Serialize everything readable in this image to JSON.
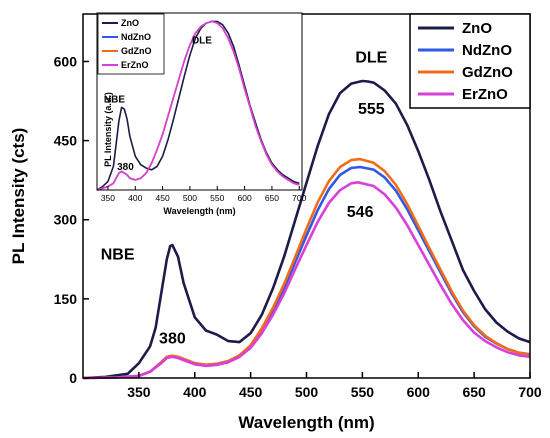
{
  "chart_data": [
    {
      "type": "line",
      "xlabel": "Wavelength (nm)",
      "ylabel": "PL Intensity (cts)",
      "xlim": [
        300,
        700
      ],
      "ylim": [
        0,
        690
      ],
      "xticks": [
        350,
        400,
        450,
        500,
        550,
        600,
        650,
        700
      ],
      "yticks": [
        0,
        150,
        300,
        450,
        600
      ],
      "legend_position": "top-right",
      "grid": false,
      "annotations": [
        {
          "text": "NBE",
          "x": 331,
          "y": 225
        },
        {
          "text": "380",
          "x": 380,
          "y": 65
        },
        {
          "text": "DLE",
          "x": 558,
          "y": 598
        },
        {
          "text": "555",
          "x": 558,
          "y": 500
        },
        {
          "text": "546",
          "x": 548,
          "y": 305
        }
      ],
      "series": [
        {
          "name": "ZnO",
          "color": "#1c1c48",
          "x": [
            300,
            320,
            340,
            350,
            360,
            365,
            370,
            375,
            378,
            380,
            385,
            390,
            400,
            410,
            420,
            430,
            440,
            450,
            460,
            470,
            480,
            490,
            500,
            510,
            520,
            530,
            540,
            550,
            555,
            560,
            570,
            580,
            590,
            600,
            610,
            620,
            630,
            640,
            650,
            660,
            670,
            680,
            690,
            700
          ],
          "y": [
            0,
            2,
            8,
            28,
            60,
            95,
            160,
            225,
            250,
            252,
            230,
            180,
            115,
            90,
            82,
            70,
            68,
            85,
            120,
            170,
            230,
            300,
            370,
            440,
            500,
            540,
            558,
            563,
            562,
            560,
            545,
            520,
            480,
            430,
            375,
            315,
            260,
            205,
            165,
            130,
            105,
            88,
            75,
            68
          ]
        },
        {
          "name": "NdZnO",
          "color": "#2f59e6",
          "x": [
            300,
            330,
            350,
            360,
            370,
            375,
            380,
            385,
            390,
            400,
            410,
            420,
            430,
            440,
            450,
            460,
            470,
            480,
            490,
            500,
            510,
            520,
            530,
            540,
            548,
            560,
            570,
            580,
            590,
            600,
            610,
            620,
            630,
            640,
            650,
            660,
            670,
            680,
            690,
            700
          ],
          "y": [
            0,
            1,
            4,
            12,
            30,
            40,
            42,
            40,
            36,
            28,
            25,
            27,
            32,
            42,
            60,
            90,
            128,
            170,
            220,
            270,
            318,
            358,
            385,
            398,
            400,
            395,
            380,
            355,
            320,
            280,
            240,
            200,
            160,
            125,
            98,
            78,
            65,
            55,
            48,
            45
          ]
        },
        {
          "name": "GdZnO",
          "color": "#f26c17",
          "x": [
            300,
            330,
            350,
            360,
            370,
            375,
            380,
            385,
            390,
            400,
            410,
            420,
            430,
            440,
            450,
            460,
            470,
            480,
            490,
            500,
            510,
            520,
            530,
            540,
            548,
            560,
            570,
            580,
            590,
            600,
            610,
            620,
            630,
            640,
            650,
            660,
            670,
            680,
            690,
            700
          ],
          "y": [
            0,
            1,
            4,
            12,
            30,
            40,
            42,
            40,
            36,
            28,
            25,
            27,
            32,
            43,
            62,
            94,
            133,
            178,
            230,
            283,
            333,
            373,
            400,
            413,
            415,
            408,
            392,
            366,
            330,
            288,
            246,
            205,
            164,
            128,
            100,
            80,
            66,
            55,
            48,
            44
          ]
        },
        {
          "name": "ErZnO",
          "color": "#d93fd9",
          "x": [
            300,
            330,
            350,
            360,
            370,
            375,
            380,
            385,
            390,
            400,
            410,
            420,
            430,
            440,
            450,
            460,
            470,
            480,
            490,
            500,
            510,
            520,
            530,
            540,
            546,
            560,
            570,
            580,
            590,
            600,
            610,
            620,
            630,
            640,
            650,
            660,
            670,
            680,
            690,
            700
          ],
          "y": [
            0,
            1,
            4,
            12,
            28,
            38,
            40,
            38,
            34,
            26,
            23,
            25,
            30,
            40,
            57,
            85,
            120,
            160,
            207,
            252,
            296,
            332,
            356,
            369,
            371,
            364,
            348,
            323,
            290,
            252,
            214,
            176,
            140,
            110,
            86,
            70,
            58,
            49,
            43,
            40
          ]
        }
      ]
    },
    {
      "type": "line",
      "xlabel": "Wavelength (nm)",
      "ylabel": "PL Intensity (a.u.)",
      "xlim": [
        330,
        705
      ],
      "ylim": [
        0,
        1.05
      ],
      "xticks": [
        350,
        400,
        450,
        500,
        550,
        600,
        650,
        700
      ],
      "legend_position": "top-left",
      "annotations": [
        {
          "text": "NBE",
          "x": 362,
          "y": 0.52
        },
        {
          "text": "380",
          "x": 382,
          "y": 0.12
        },
        {
          "text": "DLE",
          "x": 522,
          "y": 0.87
        }
      ],
      "series": [
        {
          "name": "ZnO",
          "color": "#1c1c48",
          "x": [
            330,
            340,
            350,
            360,
            365,
            370,
            375,
            380,
            385,
            390,
            400,
            410,
            420,
            430,
            440,
            450,
            460,
            470,
            480,
            490,
            500,
            510,
            520,
            530,
            540,
            550,
            560,
            570,
            580,
            590,
            600,
            610,
            620,
            630,
            640,
            650,
            660,
            670,
            680,
            690,
            700
          ],
          "y": [
            0,
            0.02,
            0.05,
            0.14,
            0.27,
            0.41,
            0.49,
            0.48,
            0.42,
            0.32,
            0.2,
            0.15,
            0.13,
            0.12,
            0.14,
            0.2,
            0.3,
            0.42,
            0.55,
            0.68,
            0.8,
            0.9,
            0.96,
            0.99,
            1.0,
            1.0,
            0.98,
            0.93,
            0.85,
            0.74,
            0.62,
            0.5,
            0.4,
            0.3,
            0.22,
            0.16,
            0.12,
            0.09,
            0.07,
            0.05,
            0.04
          ]
        },
        {
          "name": "NdZnO",
          "color": "#2f59e6",
          "x": [
            330,
            340,
            350,
            360,
            365,
            370,
            375,
            380,
            385,
            390,
            400,
            410,
            420,
            430,
            440,
            450,
            460,
            470,
            480,
            490,
            500,
            510,
            520,
            530,
            540,
            550,
            560,
            570,
            580,
            590,
            600,
            610,
            620,
            630,
            640,
            650,
            660,
            670,
            680,
            690,
            700
          ],
          "y": [
            0,
            0.01,
            0.02,
            0.04,
            0.07,
            0.1,
            0.11,
            0.1,
            0.09,
            0.07,
            0.06,
            0.07,
            0.1,
            0.16,
            0.24,
            0.33,
            0.44,
            0.55,
            0.66,
            0.77,
            0.86,
            0.93,
            0.97,
            0.99,
            1.0,
            0.99,
            0.96,
            0.9,
            0.82,
            0.72,
            0.6,
            0.49,
            0.38,
            0.29,
            0.21,
            0.15,
            0.11,
            0.08,
            0.06,
            0.04,
            0.03
          ]
        },
        {
          "name": "GdZnO",
          "color": "#f26c17",
          "x": [
            330,
            340,
            350,
            360,
            365,
            370,
            375,
            380,
            385,
            390,
            400,
            410,
            420,
            430,
            440,
            450,
            460,
            470,
            480,
            490,
            500,
            510,
            520,
            530,
            540,
            550,
            560,
            570,
            580,
            590,
            600,
            610,
            620,
            630,
            640,
            650,
            660,
            670,
            680,
            690,
            700
          ],
          "y": [
            0,
            0.01,
            0.02,
            0.04,
            0.07,
            0.1,
            0.11,
            0.1,
            0.09,
            0.07,
            0.06,
            0.07,
            0.1,
            0.16,
            0.24,
            0.33,
            0.44,
            0.55,
            0.66,
            0.77,
            0.86,
            0.93,
            0.97,
            0.99,
            1.0,
            0.99,
            0.96,
            0.9,
            0.82,
            0.72,
            0.6,
            0.49,
            0.38,
            0.29,
            0.21,
            0.15,
            0.11,
            0.08,
            0.06,
            0.04,
            0.03
          ]
        },
        {
          "name": "ErZnO",
          "color": "#d93fd9",
          "x": [
            330,
            340,
            350,
            360,
            365,
            370,
            375,
            380,
            385,
            390,
            400,
            410,
            420,
            430,
            440,
            450,
            460,
            470,
            480,
            490,
            500,
            510,
            520,
            530,
            540,
            550,
            560,
            570,
            580,
            590,
            600,
            610,
            620,
            630,
            640,
            650,
            660,
            670,
            680,
            690,
            700
          ],
          "y": [
            0,
            0.01,
            0.02,
            0.04,
            0.07,
            0.1,
            0.11,
            0.1,
            0.09,
            0.07,
            0.06,
            0.07,
            0.1,
            0.16,
            0.24,
            0.33,
            0.44,
            0.55,
            0.66,
            0.77,
            0.86,
            0.93,
            0.97,
            0.99,
            1.0,
            0.99,
            0.96,
            0.9,
            0.82,
            0.72,
            0.6,
            0.49,
            0.38,
            0.29,
            0.21,
            0.15,
            0.11,
            0.08,
            0.06,
            0.04,
            0.03
          ]
        }
      ]
    }
  ]
}
